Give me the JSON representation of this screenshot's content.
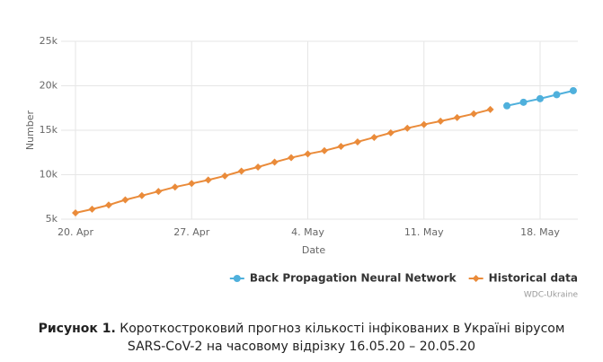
{
  "chart_data": {
    "type": "line",
    "x_label": "Date",
    "y_label": "Number",
    "series": [
      {
        "name": "Back Propagation Neural Network",
        "color": "#4fb0dc",
        "marker": "circle",
        "x": [
          "05-16",
          "05-17",
          "05-18",
          "05-19",
          "05-20"
        ],
        "values": [
          17750,
          18150,
          18550,
          19000,
          19450
        ]
      },
      {
        "name": "Historical data",
        "color": "#ea8b3a",
        "marker": "diamond",
        "x": [
          "04-20",
          "04-21",
          "04-22",
          "04-23",
          "04-24",
          "04-25",
          "04-26",
          "04-27",
          "04-28",
          "04-29",
          "04-30",
          "05-01",
          "05-02",
          "05-03",
          "05-04",
          "05-05",
          "05-06",
          "05-07",
          "05-08",
          "05-09",
          "05-10",
          "05-11",
          "05-12",
          "05-13",
          "05-14",
          "05-15"
        ],
        "values": [
          5710,
          6125,
          6592,
          7170,
          7647,
          8125,
          8617,
          9009,
          9410,
          9866,
          10406,
          10861,
          11411,
          11913,
          12331,
          12697,
          13184,
          13691,
          14195,
          14710,
          15232,
          15648,
          16023,
          16425,
          16847,
          17330
        ]
      }
    ],
    "xticks": [
      {
        "value": "04-20",
        "label": "20. Apr"
      },
      {
        "value": "04-27",
        "label": "27. Apr"
      },
      {
        "value": "05-04",
        "label": "4. May"
      },
      {
        "value": "05-11",
        "label": "11. May"
      },
      {
        "value": "05-18",
        "label": "18. May"
      }
    ],
    "ylim": [
      5000,
      25000
    ],
    "yticks": [
      {
        "value": 5000,
        "label": "5k"
      },
      {
        "value": 10000,
        "label": "10k"
      },
      {
        "value": 15000,
        "label": "15k"
      },
      {
        "value": 20000,
        "label": "20k"
      },
      {
        "value": 25000,
        "label": "25k"
      }
    ],
    "grid": true,
    "legend": "bottom-right",
    "credit": "WDC-Ukraine"
  },
  "caption": {
    "label": "Рисунок 1.",
    "text": "Короткостроковий прогноз кількості інфікованих в Україні вірусом SARS-CoV-2 на часовому відрізку 16.05.20 – 20.05.20"
  }
}
